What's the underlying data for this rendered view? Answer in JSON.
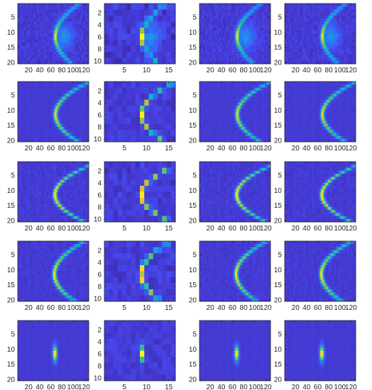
{
  "chart_data": {
    "type": "heatmap",
    "layout": {
      "rows": 5,
      "cols": 4
    },
    "colormap": "parula",
    "colormap_stops": [
      "#3e26a8",
      "#4746eb",
      "#2f70fb",
      "#1e97e3",
      "#0cb8b5",
      "#5ec961",
      "#d6bd37",
      "#fcd630",
      "#f9fb15"
    ],
    "axis_types": {
      "full": {
        "x_range": [
          1,
          128
        ],
        "y_range": [
          1,
          20
        ],
        "x_ticks": [
          "20",
          "40",
          "60",
          "80",
          "100",
          "120"
        ],
        "y_ticks": [
          "5",
          "10",
          "15",
          "20"
        ]
      },
      "small": {
        "x_range": [
          1,
          16
        ],
        "y_range": [
          1,
          10
        ],
        "x_ticks": [
          "5",
          "10",
          "15"
        ],
        "y_ticks": [
          "2",
          "4",
          "6",
          "8",
          "10"
        ]
      }
    },
    "column_axis_type": [
      "full",
      "small",
      "full",
      "full"
    ],
    "rows": [
      {
        "shape": "blob",
        "apex_x": 68,
        "spread": 0.7,
        "noise": 0.35,
        "brightness": 1.0
      },
      {
        "shape": "arc",
        "apex_x": 68,
        "spread": 1.0,
        "noise": 0.08,
        "brightness": 0.9
      },
      {
        "shape": "arc",
        "apex_x": 67,
        "spread": 1.3,
        "noise": 0.22,
        "brightness": 1.0
      },
      {
        "shape": "arc",
        "apex_x": 66,
        "spread": 0.9,
        "noise": 0.2,
        "brightness": 0.95
      },
      {
        "shape": "spot",
        "apex_x": 67,
        "spread": 0.4,
        "noise": 0.02,
        "brightness": 1.0
      }
    ],
    "title": "",
    "xlabel": "",
    "ylabel": ""
  }
}
